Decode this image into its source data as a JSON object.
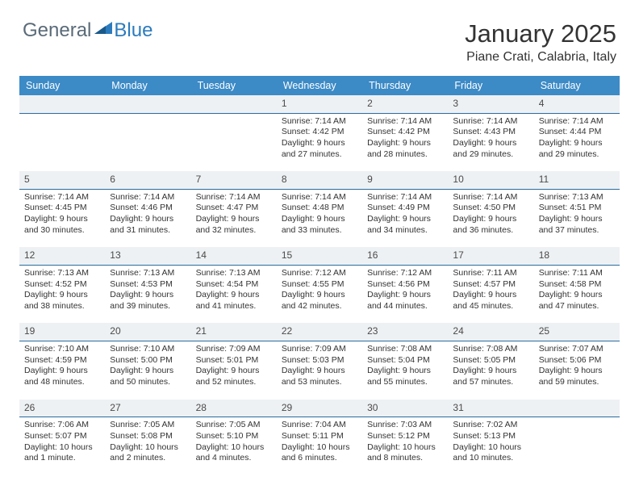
{
  "logo": {
    "text1": "General",
    "text2": "Blue"
  },
  "title": "January 2025",
  "location": "Piane Crati, Calabria, Italy",
  "colors": {
    "header_bg": "#3c8ac6",
    "header_text": "#ffffff",
    "daynum_bg": "#eef1f3",
    "daynum_border": "#2b6ca0",
    "body_text": "#333333",
    "logo_gray": "#5a6a78",
    "logo_blue": "#2b7bbd"
  },
  "dayNames": [
    "Sunday",
    "Monday",
    "Tuesday",
    "Wednesday",
    "Thursday",
    "Friday",
    "Saturday"
  ],
  "weeks": [
    [
      null,
      null,
      null,
      {
        "n": "1",
        "rise": "7:14 AM",
        "set": "4:42 PM",
        "dl1": "9 hours",
        "dl2": "and 27 minutes."
      },
      {
        "n": "2",
        "rise": "7:14 AM",
        "set": "4:42 PM",
        "dl1": "9 hours",
        "dl2": "and 28 minutes."
      },
      {
        "n": "3",
        "rise": "7:14 AM",
        "set": "4:43 PM",
        "dl1": "9 hours",
        "dl2": "and 29 minutes."
      },
      {
        "n": "4",
        "rise": "7:14 AM",
        "set": "4:44 PM",
        "dl1": "9 hours",
        "dl2": "and 29 minutes."
      }
    ],
    [
      {
        "n": "5",
        "rise": "7:14 AM",
        "set": "4:45 PM",
        "dl1": "9 hours",
        "dl2": "and 30 minutes."
      },
      {
        "n": "6",
        "rise": "7:14 AM",
        "set": "4:46 PM",
        "dl1": "9 hours",
        "dl2": "and 31 minutes."
      },
      {
        "n": "7",
        "rise": "7:14 AM",
        "set": "4:47 PM",
        "dl1": "9 hours",
        "dl2": "and 32 minutes."
      },
      {
        "n": "8",
        "rise": "7:14 AM",
        "set": "4:48 PM",
        "dl1": "9 hours",
        "dl2": "and 33 minutes."
      },
      {
        "n": "9",
        "rise": "7:14 AM",
        "set": "4:49 PM",
        "dl1": "9 hours",
        "dl2": "and 34 minutes."
      },
      {
        "n": "10",
        "rise": "7:14 AM",
        "set": "4:50 PM",
        "dl1": "9 hours",
        "dl2": "and 36 minutes."
      },
      {
        "n": "11",
        "rise": "7:13 AM",
        "set": "4:51 PM",
        "dl1": "9 hours",
        "dl2": "and 37 minutes."
      }
    ],
    [
      {
        "n": "12",
        "rise": "7:13 AM",
        "set": "4:52 PM",
        "dl1": "9 hours",
        "dl2": "and 38 minutes."
      },
      {
        "n": "13",
        "rise": "7:13 AM",
        "set": "4:53 PM",
        "dl1": "9 hours",
        "dl2": "and 39 minutes."
      },
      {
        "n": "14",
        "rise": "7:13 AM",
        "set": "4:54 PM",
        "dl1": "9 hours",
        "dl2": "and 41 minutes."
      },
      {
        "n": "15",
        "rise": "7:12 AM",
        "set": "4:55 PM",
        "dl1": "9 hours",
        "dl2": "and 42 minutes."
      },
      {
        "n": "16",
        "rise": "7:12 AM",
        "set": "4:56 PM",
        "dl1": "9 hours",
        "dl2": "and 44 minutes."
      },
      {
        "n": "17",
        "rise": "7:11 AM",
        "set": "4:57 PM",
        "dl1": "9 hours",
        "dl2": "and 45 minutes."
      },
      {
        "n": "18",
        "rise": "7:11 AM",
        "set": "4:58 PM",
        "dl1": "9 hours",
        "dl2": "and 47 minutes."
      }
    ],
    [
      {
        "n": "19",
        "rise": "7:10 AM",
        "set": "4:59 PM",
        "dl1": "9 hours",
        "dl2": "and 48 minutes."
      },
      {
        "n": "20",
        "rise": "7:10 AM",
        "set": "5:00 PM",
        "dl1": "9 hours",
        "dl2": "and 50 minutes."
      },
      {
        "n": "21",
        "rise": "7:09 AM",
        "set": "5:01 PM",
        "dl1": "9 hours",
        "dl2": "and 52 minutes."
      },
      {
        "n": "22",
        "rise": "7:09 AM",
        "set": "5:03 PM",
        "dl1": "9 hours",
        "dl2": "and 53 minutes."
      },
      {
        "n": "23",
        "rise": "7:08 AM",
        "set": "5:04 PM",
        "dl1": "9 hours",
        "dl2": "and 55 minutes."
      },
      {
        "n": "24",
        "rise": "7:08 AM",
        "set": "5:05 PM",
        "dl1": "9 hours",
        "dl2": "and 57 minutes."
      },
      {
        "n": "25",
        "rise": "7:07 AM",
        "set": "5:06 PM",
        "dl1": "9 hours",
        "dl2": "and 59 minutes."
      }
    ],
    [
      {
        "n": "26",
        "rise": "7:06 AM",
        "set": "5:07 PM",
        "dl1": "10 hours",
        "dl2": "and 1 minute."
      },
      {
        "n": "27",
        "rise": "7:05 AM",
        "set": "5:08 PM",
        "dl1": "10 hours",
        "dl2": "and 2 minutes."
      },
      {
        "n": "28",
        "rise": "7:05 AM",
        "set": "5:10 PM",
        "dl1": "10 hours",
        "dl2": "and 4 minutes."
      },
      {
        "n": "29",
        "rise": "7:04 AM",
        "set": "5:11 PM",
        "dl1": "10 hours",
        "dl2": "and 6 minutes."
      },
      {
        "n": "30",
        "rise": "7:03 AM",
        "set": "5:12 PM",
        "dl1": "10 hours",
        "dl2": "and 8 minutes."
      },
      {
        "n": "31",
        "rise": "7:02 AM",
        "set": "5:13 PM",
        "dl1": "10 hours",
        "dl2": "and 10 minutes."
      },
      null
    ]
  ],
  "labels": {
    "sunrise": "Sunrise:",
    "sunset": "Sunset:",
    "daylight": "Daylight:"
  }
}
